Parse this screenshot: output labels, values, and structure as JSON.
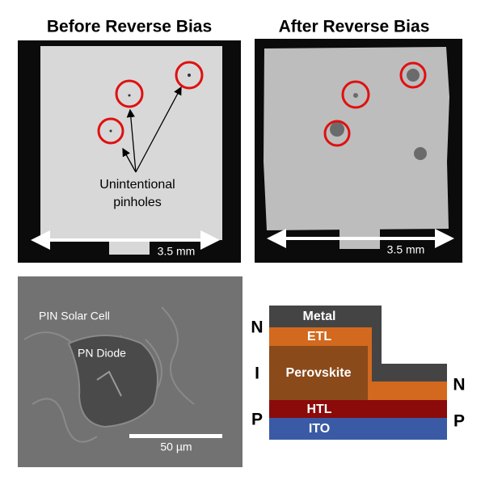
{
  "panels": {
    "before": {
      "title": "Before Reverse Bias",
      "annotation": [
        "Unintentional",
        "pinholes"
      ],
      "scale": "3.5 mm"
    },
    "after": {
      "title": "After Reverse Bias",
      "scale": "3.5 mm"
    },
    "sem": {
      "labels": [
        "PIN Solar Cell",
        "PN Diode"
      ],
      "scale": "50 µm"
    },
    "stack": {
      "layers": [
        "Metal",
        "ETL",
        "Perovskite",
        "HTL",
        "ITO"
      ],
      "left_letters": [
        "N",
        "I",
        "P"
      ],
      "right_letters": [
        "N",
        "P"
      ]
    }
  }
}
